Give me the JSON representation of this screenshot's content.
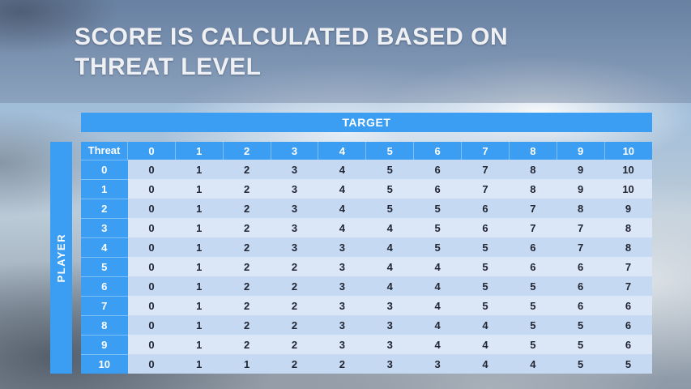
{
  "slide": {
    "title_line1": "SCORE IS CALCULATED BASED ON",
    "title_line2": "THREAT LEVEL"
  },
  "table": {
    "target_label": "TARGET",
    "player_label": "PLAYER",
    "corner_label": "Threat",
    "column_headers": [
      "0",
      "1",
      "2",
      "3",
      "4",
      "5",
      "6",
      "7",
      "8",
      "9",
      "10"
    ],
    "rows": [
      {
        "threat": "0",
        "values": [
          "0",
          "1",
          "2",
          "3",
          "4",
          "5",
          "6",
          "7",
          "8",
          "9",
          "10"
        ]
      },
      {
        "threat": "1",
        "values": [
          "0",
          "1",
          "2",
          "3",
          "4",
          "5",
          "6",
          "7",
          "8",
          "9",
          "10"
        ]
      },
      {
        "threat": "2",
        "values": [
          "0",
          "1",
          "2",
          "3",
          "4",
          "5",
          "5",
          "6",
          "7",
          "8",
          "9"
        ]
      },
      {
        "threat": "3",
        "values": [
          "0",
          "1",
          "2",
          "3",
          "4",
          "4",
          "5",
          "6",
          "7",
          "7",
          "8"
        ]
      },
      {
        "threat": "4",
        "values": [
          "0",
          "1",
          "2",
          "3",
          "3",
          "4",
          "5",
          "5",
          "6",
          "7",
          "8"
        ]
      },
      {
        "threat": "5",
        "values": [
          "0",
          "1",
          "2",
          "2",
          "3",
          "4",
          "4",
          "5",
          "6",
          "6",
          "7"
        ]
      },
      {
        "threat": "6",
        "values": [
          "0",
          "1",
          "2",
          "2",
          "3",
          "4",
          "4",
          "5",
          "5",
          "6",
          "7"
        ]
      },
      {
        "threat": "7",
        "values": [
          "0",
          "1",
          "2",
          "2",
          "3",
          "3",
          "4",
          "5",
          "5",
          "6",
          "6"
        ]
      },
      {
        "threat": "8",
        "values": [
          "0",
          "1",
          "2",
          "2",
          "3",
          "3",
          "4",
          "4",
          "5",
          "5",
          "6"
        ]
      },
      {
        "threat": "9",
        "values": [
          "0",
          "1",
          "2",
          "2",
          "3",
          "3",
          "4",
          "4",
          "5",
          "5",
          "6"
        ]
      },
      {
        "threat": "10",
        "values": [
          "0",
          "1",
          "1",
          "2",
          "2",
          "3",
          "3",
          "4",
          "4",
          "5",
          "5"
        ]
      }
    ]
  },
  "colors": {
    "accent_blue": "#3b9ef3",
    "row_light": "#c6d9f3",
    "row_lighter": "#dbe6f7",
    "title_text": "#eef0f3"
  }
}
